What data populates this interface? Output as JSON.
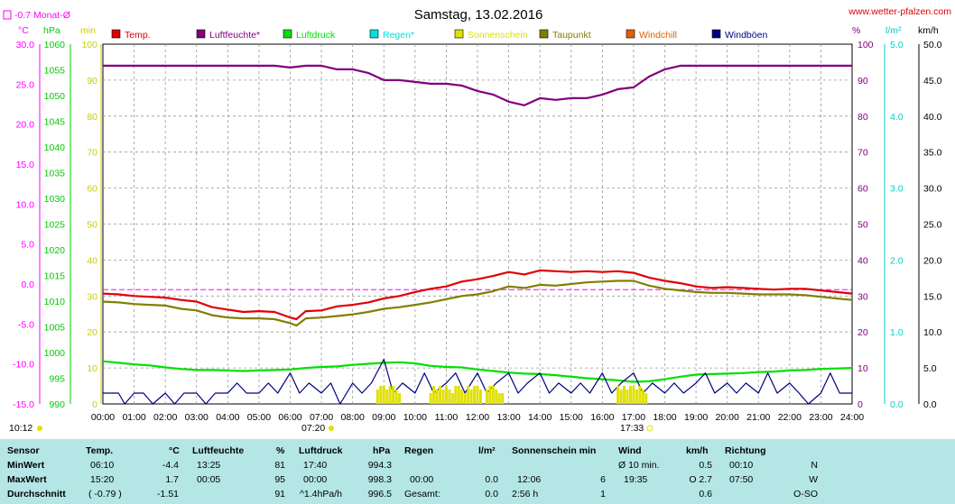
{
  "header": {
    "title": "Samstag, 13.02.2016",
    "site": "www.wetter-pfalzen.com",
    "month_avg": "-0.7 Monat-Ø",
    "time_sunrise": "10:12",
    "time_rise": "07:20",
    "time_set": "17:33"
  },
  "legend": [
    {
      "label": "Temp.",
      "color": "#e00000"
    },
    {
      "label": "Luftfeuchte*",
      "color": "#800080"
    },
    {
      "label": "Luftdruck",
      "color": "#00e000"
    },
    {
      "label": "Regen*",
      "color": "#00e0e0"
    },
    {
      "label": "Sonnenschein",
      "color": "#e0e000"
    },
    {
      "label": "Taupunkt",
      "color": "#808000"
    },
    {
      "label": "Windchill",
      "color": "#e06000"
    },
    {
      "label": "Windböen",
      "color": "#000080"
    }
  ],
  "axes": {
    "units_left": [
      "°C",
      "hPa",
      "min"
    ],
    "units_right": [
      "%",
      "l/m²",
      "km/h"
    ],
    "temp_ticks": [
      "30.0",
      "25.0",
      "20.0",
      "15.0",
      "10.0",
      "5.0",
      "0.0",
      "-5.0",
      "-10.0",
      "-15.0"
    ],
    "hpa_ticks": [
      "1060",
      "1055",
      "1050",
      "1045",
      "1040",
      "1035",
      "1030",
      "1025",
      "1020",
      "1015",
      "1010",
      "1005",
      "1000",
      "995",
      "990"
    ],
    "min_ticks": [
      "100",
      "90",
      "80",
      "70",
      "60",
      "50",
      "40",
      "30",
      "20",
      "10",
      "0"
    ],
    "pct_ticks": [
      "100",
      "90",
      "80",
      "70",
      "60",
      "50",
      "40",
      "30",
      "20",
      "10",
      "0"
    ],
    "rain_ticks": [
      "5.0",
      "4.0",
      "3.0",
      "2.0",
      "1.0",
      "0.0"
    ],
    "wind_ticks": [
      "50.0",
      "45.0",
      "40.0",
      "35.0",
      "30.0",
      "25.0",
      "20.0",
      "15.0",
      "10.0",
      "5.0",
      "0.0"
    ],
    "time_ticks": [
      "00:00",
      "01:00",
      "02:00",
      "03:00",
      "04:00",
      "05:00",
      "06:00",
      "07:00",
      "08:00",
      "09:00",
      "10:00",
      "11:00",
      "12:00",
      "13:00",
      "14:00",
      "15:00",
      "16:00",
      "17:00",
      "18:00",
      "19:00",
      "20:00",
      "21:00",
      "22:00",
      "23:00",
      "24:00"
    ]
  },
  "chart_data": {
    "type": "line",
    "title": "Samstag, 13.02.2016",
    "x_range": [
      "00:00",
      "24:00"
    ],
    "series": [
      {
        "name": "Temp.",
        "unit": "°C",
        "color": "#e00000",
        "x": [
          0,
          0.5,
          1,
          1.5,
          2,
          2.5,
          3,
          3.5,
          4,
          4.5,
          5,
          5.5,
          6,
          6.2,
          6.5,
          7,
          7.5,
          8,
          8.5,
          9,
          9.5,
          10,
          10.5,
          11,
          11.5,
          12,
          12.5,
          13,
          13.5,
          14,
          14.5,
          15,
          15.5,
          16,
          16.5,
          17,
          17.5,
          18,
          18.5,
          19,
          19.5,
          20,
          20.5,
          21,
          21.5,
          22,
          22.5,
          23,
          23.5,
          24
        ],
        "y": [
          -1.2,
          -1.3,
          -1.5,
          -1.6,
          -1.7,
          -2.0,
          -2.2,
          -2.9,
          -3.2,
          -3.5,
          -3.4,
          -3.5,
          -4.2,
          -4.4,
          -3.4,
          -3.3,
          -2.8,
          -2.6,
          -2.3,
          -1.8,
          -1.5,
          -1.0,
          -0.6,
          -0.3,
          0.3,
          0.6,
          1.0,
          1.5,
          1.2,
          1.7,
          1.6,
          1.5,
          1.6,
          1.5,
          1.6,
          1.4,
          0.8,
          0.4,
          0.1,
          -0.3,
          -0.5,
          -0.4,
          -0.5,
          -0.6,
          -0.7,
          -0.6,
          -0.6,
          -0.8,
          -1.0,
          -1.2
        ]
      },
      {
        "name": "Luftfeuchte*",
        "unit": "%",
        "color": "#800080",
        "x": [
          0,
          0.5,
          1,
          1.5,
          2,
          2.5,
          3,
          3.5,
          4,
          4.5,
          5,
          5.5,
          6,
          6.5,
          7,
          7.5,
          8,
          8.5,
          9,
          9.5,
          10,
          10.5,
          11,
          11.5,
          12,
          12.5,
          13,
          13.5,
          14,
          14.5,
          15,
          15.5,
          16,
          16.5,
          17,
          17.5,
          18,
          18.5,
          19,
          19.5,
          20,
          20.5,
          21,
          21.5,
          22,
          22.5,
          23,
          23.5,
          24
        ],
        "y": [
          94,
          94,
          94,
          94,
          94,
          94,
          94,
          94,
          94,
          94,
          94,
          94,
          93.5,
          94,
          94,
          93,
          93,
          92,
          90,
          90,
          89.5,
          89,
          89,
          88.5,
          87,
          86,
          84,
          83,
          85,
          84.5,
          85,
          85,
          86,
          87.5,
          88,
          91,
          93,
          94,
          94,
          94,
          94,
          94,
          94,
          94,
          94,
          94,
          94,
          94,
          94
        ]
      },
      {
        "name": "Luftdruck",
        "unit": "hPa",
        "color": "#00e000",
        "x": [
          0,
          0.5,
          1,
          1.5,
          2,
          2.5,
          3,
          3.5,
          4,
          4.5,
          5,
          5.5,
          6,
          6.5,
          7,
          7.5,
          8,
          8.5,
          9,
          9.5,
          10,
          10.5,
          11,
          11.5,
          12,
          12.5,
          13,
          13.5,
          14,
          14.5,
          15,
          15.5,
          16,
          16.5,
          17,
          17.5,
          18,
          18.5,
          19,
          19.5,
          20,
          20.5,
          21,
          21.5,
          22,
          22.5,
          23,
          23.5,
          24
        ],
        "y": [
          998.3,
          998.0,
          997.7,
          997.5,
          997.1,
          996.8,
          996.6,
          996.6,
          996.5,
          996.4,
          996.5,
          996.6,
          996.7,
          997.0,
          997.2,
          997.3,
          997.6,
          997.8,
          998.0,
          998.1,
          997.9,
          997.4,
          997.2,
          997.1,
          996.7,
          996.4,
          996.1,
          995.9,
          995.8,
          995.6,
          995.3,
          995.0,
          994.8,
          994.6,
          994.3,
          994.4,
          994.8,
          995.3,
          995.7,
          995.8,
          995.9,
          996.0,
          996.2,
          996.3,
          996.5,
          996.6,
          996.8,
          996.9,
          997.0
        ]
      },
      {
        "name": "Taupunkt",
        "unit": "°C",
        "color": "#808000",
        "x": [
          0,
          0.5,
          1,
          1.5,
          2,
          2.5,
          3,
          3.5,
          4,
          4.5,
          5,
          5.5,
          6,
          6.2,
          6.5,
          7,
          7.5,
          8,
          8.5,
          9,
          9.5,
          10,
          10.5,
          11,
          11.5,
          12,
          12.5,
          13,
          13.5,
          14,
          14.5,
          15,
          15.5,
          16,
          16.5,
          17,
          17.5,
          18,
          18.5,
          19,
          19.5,
          20,
          20.5,
          21,
          21.5,
          22,
          22.5,
          23,
          23.5,
          24
        ],
        "y": [
          -2.2,
          -2.3,
          -2.5,
          -2.6,
          -2.7,
          -3.1,
          -3.3,
          -3.9,
          -4.2,
          -4.3,
          -4.3,
          -4.4,
          -4.9,
          -5.2,
          -4.3,
          -4.2,
          -4.0,
          -3.8,
          -3.5,
          -3.1,
          -2.9,
          -2.6,
          -2.3,
          -1.9,
          -1.5,
          -1.3,
          -0.9,
          -0.3,
          -0.5,
          -0.1,
          -0.2,
          0.0,
          0.2,
          0.3,
          0.4,
          0.4,
          -0.2,
          -0.6,
          -0.8,
          -1.0,
          -1.1,
          -1.1,
          -1.2,
          -1.3,
          -1.3,
          -1.3,
          -1.4,
          -1.6,
          -1.8,
          -2.0
        ]
      },
      {
        "name": "Windböen",
        "unit": "km/h",
        "color": "#000080",
        "x": [
          0,
          0.5,
          0.7,
          1,
          1.3,
          1.6,
          2,
          2.3,
          2.6,
          3,
          3.3,
          3.6,
          4,
          4.3,
          4.6,
          5,
          5.3,
          5.6,
          6,
          6.3,
          6.6,
          7,
          7.3,
          7.6,
          8,
          8.3,
          8.6,
          9,
          9.3,
          9.6,
          10,
          10.3,
          10.6,
          11,
          11.3,
          11.6,
          12,
          12.3,
          12.6,
          13,
          13.3,
          13.6,
          14,
          14.3,
          14.6,
          15,
          15.3,
          15.6,
          16,
          16.3,
          16.6,
          17,
          17.3,
          17.6,
          18,
          18.3,
          18.6,
          19,
          19.3,
          19.6,
          20,
          20.3,
          20.6,
          21,
          21.3,
          21.6,
          22,
          22.3,
          22.6,
          23,
          23.3,
          23.6,
          24
        ],
        "y": [
          1.5,
          1.5,
          0,
          1.5,
          1.5,
          0,
          1.5,
          0,
          1.5,
          1.5,
          0,
          1.5,
          1.5,
          2.9,
          1.5,
          1.5,
          2.9,
          1.5,
          4.3,
          1.5,
          2.9,
          1.5,
          2.9,
          0,
          2.9,
          1.5,
          2.9,
          6.2,
          1.5,
          2.9,
          1.5,
          4.3,
          1.5,
          2.9,
          4.3,
          1.5,
          4.3,
          1.5,
          2.9,
          4.3,
          1.5,
          2.9,
          4.3,
          1.5,
          2.9,
          1.5,
          2.9,
          1.5,
          4.3,
          1.5,
          2.9,
          4.3,
          1.5,
          2.9,
          1.5,
          2.9,
          1.5,
          2.9,
          4.3,
          1.5,
          2.9,
          1.5,
          2.9,
          1.5,
          4.3,
          1.5,
          2.9,
          1.5,
          0,
          1.5,
          4.3,
          1.5,
          1.5
        ]
      },
      {
        "name": "Sonnenschein",
        "unit": "min",
        "color": "#e0e000",
        "x": [
          8.8,
          8.9,
          9.0,
          9.1,
          9.2,
          9.3,
          9.4,
          9.5,
          10.5,
          10.6,
          10.7,
          10.8,
          10.9,
          11.0,
          11.1,
          11.2,
          11.3,
          11.4,
          11.5,
          11.6,
          11.7,
          11.8,
          11.9,
          12.0,
          12.1,
          12.3,
          12.4,
          12.5,
          12.6,
          12.7,
          12.8,
          16.5,
          16.6,
          16.7,
          16.8,
          16.9,
          17.0,
          17.1,
          17.2,
          17.3,
          17.4
        ],
        "y": [
          4,
          5,
          5,
          4,
          5,
          5,
          4,
          3,
          3,
          5,
          4,
          5,
          4,
          5,
          4,
          3,
          5,
          5,
          4,
          3,
          5,
          4,
          5,
          5,
          4,
          4,
          5,
          5,
          4,
          3,
          3,
          5,
          4,
          5,
          4,
          5,
          5,
          4,
          5,
          4,
          3
        ]
      }
    ],
    "month_avg_temp": -0.7
  },
  "stats": {
    "headers": {
      "sensor": "Sensor",
      "temp": "Temp.",
      "temp_u": "°C",
      "hum": "Luftfeuchte",
      "hum_u": "%",
      "press": "Luftdruck",
      "press_u": "hPa",
      "rain": "Regen",
      "rain_u": "l/m²",
      "sun": "Sonnenschein min",
      "wind": "Wind",
      "wind_u": "km/h",
      "dir": "Richtung"
    },
    "min": {
      "label": "MinWert",
      "t_time": "06:10",
      "t_val": "-4.4",
      "h_time": "13:25",
      "h_val": "81",
      "p_time": "17:40",
      "p_val": "994.3",
      "w_time": "Ø 10 min.",
      "w_val": "0.5",
      "d_time": "00:10",
      "d_val": "N"
    },
    "max": {
      "label": "MaxWert",
      "t_time": "15:20",
      "t_val": "1.7",
      "h_time": "00:05",
      "h_val": "95",
      "p_time": "00:00",
      "p_val": "998.3",
      "r_time": "00:00",
      "r_val": "0.0",
      "s_time": "12:06",
      "s_val": "6",
      "w_time": "19:35",
      "w_mid": "O 2.7",
      "d_time": "07:50",
      "d_val": "W"
    },
    "avg": {
      "label": "Durchschnitt",
      "t_mid": "( -0.79 )",
      "t_val": "-1.51",
      "h_val": "91",
      "p_time": "^1.4hPa/h",
      "p_val": "996.5",
      "r_time": "Gesamt:",
      "r_val": "0.0",
      "s_time": "2:56 h",
      "s_val": "1",
      "w_val": "0.6",
      "d_val": "O-SO"
    }
  }
}
